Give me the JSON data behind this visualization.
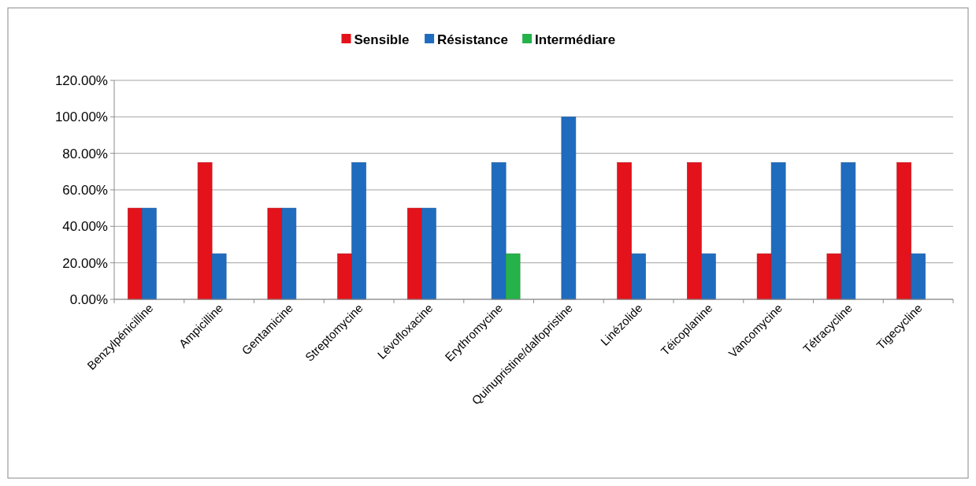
{
  "chart_data": {
    "type": "bar",
    "categories": [
      "Benzylpénicilline",
      "Ampicilline",
      "Gentamicine",
      "Streptomycine",
      "Lévofloxacine",
      "Erythromycine",
      "Quinupristine/dalfopristine",
      "Linézolide",
      "Téicoplanine",
      "Vancomycine",
      "Tétracycline",
      "Tigecycline"
    ],
    "series": [
      {
        "name": "Sensible",
        "color": "#e3121b",
        "values": [
          50,
          75,
          50,
          25,
          50,
          0,
          0,
          75,
          75,
          25,
          25,
          75
        ]
      },
      {
        "name": "Résistance",
        "color": "#1f6cbf",
        "values": [
          50,
          25,
          50,
          75,
          50,
          75,
          100,
          25,
          25,
          75,
          75,
          25
        ]
      },
      {
        "name": "Intermédiare",
        "color": "#25b24a",
        "values": [
          0,
          0,
          0,
          0,
          0,
          25,
          0,
          0,
          0,
          0,
          0,
          0
        ]
      }
    ],
    "ylim": [
      0,
      120
    ],
    "yticks": [
      {
        "value": 0,
        "label": "0.00%"
      },
      {
        "value": 20,
        "label": "20.00%"
      },
      {
        "value": 40,
        "label": "40.00%"
      },
      {
        "value": 60,
        "label": "60.00%"
      },
      {
        "value": 80,
        "label": "80.00%"
      },
      {
        "value": 100,
        "label": "100.00%"
      },
      {
        "value": 120,
        "label": "120.00%"
      }
    ],
    "grid": "y",
    "legend": "top"
  }
}
